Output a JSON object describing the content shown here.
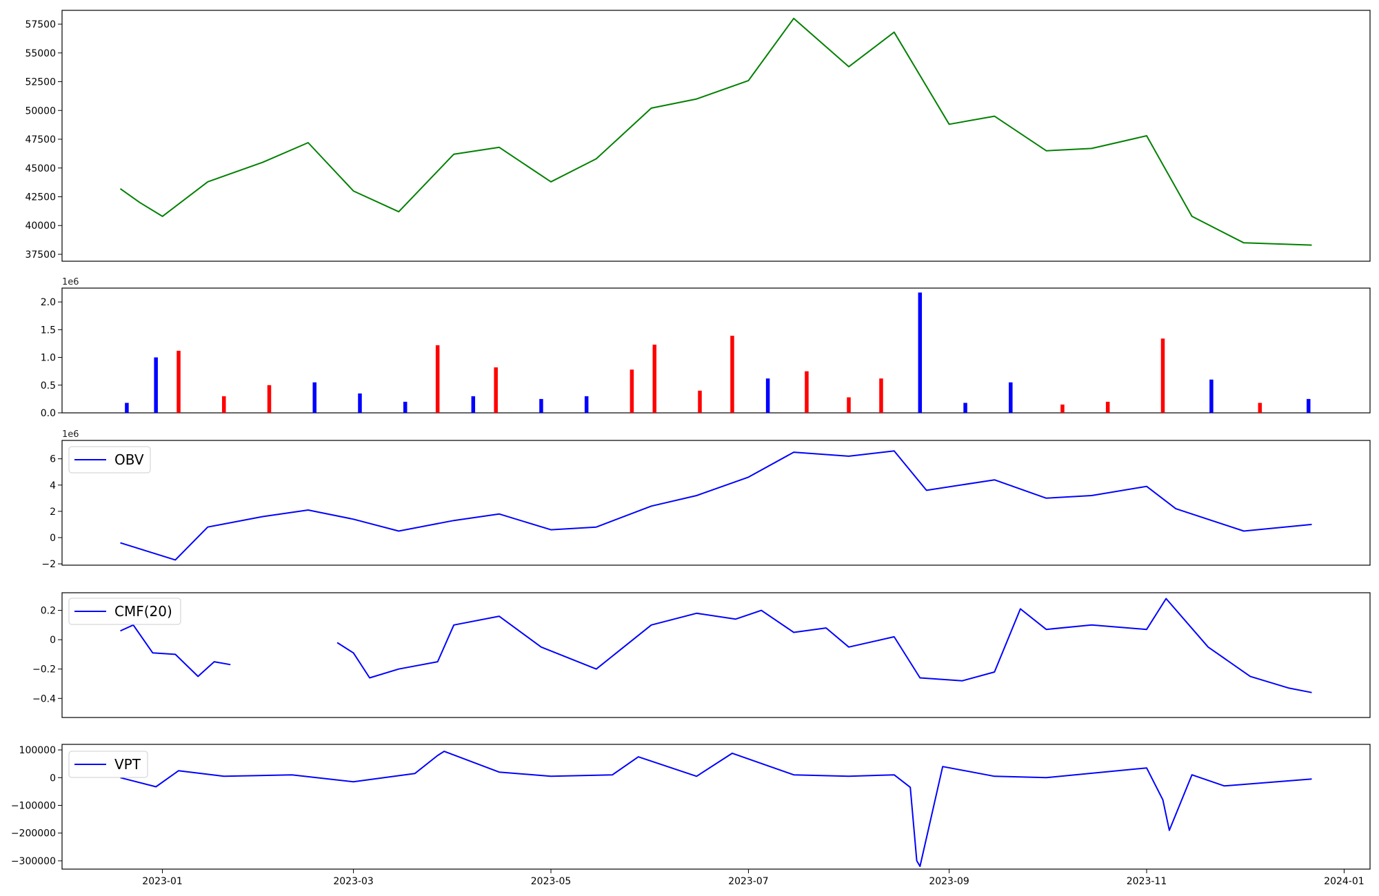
{
  "chart_data": [
    {
      "type": "line",
      "panel": "price",
      "title": "",
      "xlabel": "",
      "ylabel": "",
      "ylim": [
        36900,
        58700
      ],
      "yticks": [
        37500,
        40000,
        42500,
        45000,
        47500,
        50000,
        52500,
        55000,
        57500
      ],
      "color": "#008000",
      "x": [
        "2022-12-19",
        "2022-12-25",
        "2023-01-01",
        "2023-01-15",
        "2023-02-01",
        "2023-02-15",
        "2023-03-01",
        "2023-03-15",
        "2023-04-01",
        "2023-04-15",
        "2023-05-01",
        "2023-05-15",
        "2023-06-01",
        "2023-06-15",
        "2023-07-01",
        "2023-07-15",
        "2023-08-01",
        "2023-08-15",
        "2023-09-01",
        "2023-09-15",
        "2023-10-01",
        "2023-10-15",
        "2023-11-01",
        "2023-11-15",
        "2023-12-01",
        "2023-12-22"
      ],
      "y": [
        43200,
        42000,
        40800,
        43800,
        45500,
        47200,
        43000,
        41200,
        46200,
        46800,
        43800,
        45800,
        50200,
        51000,
        52600,
        58000,
        53800,
        56800,
        48800,
        49500,
        46500,
        46700,
        47800,
        40800,
        38500,
        38300
      ]
    },
    {
      "type": "bar",
      "panel": "volume",
      "offset_label": "1e6",
      "ylim": [
        0,
        2.25
      ],
      "yticks": [
        0.0,
        0.5,
        1.0,
        1.5,
        2.0
      ],
      "colors": [
        "#0000ff",
        "#ff0000",
        "#000000"
      ],
      "dates": [
        "2022-12-21",
        "2022-12-30",
        "2023-01-06",
        "2023-01-20",
        "2023-02-03",
        "2023-02-17",
        "2023-03-03",
        "2023-03-17",
        "2023-03-27",
        "2023-04-07",
        "2023-04-14",
        "2023-04-28",
        "2023-05-12",
        "2023-05-26",
        "2023-06-02",
        "2023-06-16",
        "2023-06-26",
        "2023-07-07",
        "2023-07-19",
        "2023-08-01",
        "2023-08-11",
        "2023-08-23",
        "2023-09-06",
        "2023-09-20",
        "2023-10-06",
        "2023-10-20",
        "2023-11-06",
        "2023-11-21",
        "2023-12-06",
        "2023-12-21"
      ],
      "values": [
        0.18,
        1.0,
        1.12,
        0.3,
        0.5,
        0.55,
        0.35,
        0.2,
        1.22,
        0.3,
        0.82,
        0.25,
        0.3,
        0.78,
        1.23,
        0.4,
        1.39,
        0.62,
        0.75,
        0.28,
        0.62,
        2.17,
        0.18,
        0.55,
        0.15,
        0.2,
        1.34,
        0.6,
        0.18,
        0.25
      ],
      "bar_colors": [
        "blue",
        "blue",
        "red",
        "red",
        "red",
        "blue",
        "blue",
        "blue",
        "red",
        "blue",
        "red",
        "blue",
        "blue",
        "red",
        "red",
        "red",
        "red",
        "blue",
        "red",
        "red",
        "red",
        "blue",
        "blue",
        "blue",
        "red",
        "red",
        "red",
        "blue",
        "red",
        "blue"
      ]
    },
    {
      "type": "line",
      "panel": "obv",
      "offset_label": "1e6",
      "legend": "OBV",
      "legend_position": "upper-left",
      "ylim": [
        -2.1,
        7.4
      ],
      "yticks": [
        -2,
        0,
        2,
        4,
        6
      ],
      "color": "#0000ff",
      "x": [
        "2022-12-19",
        "2023-01-05",
        "2023-01-15",
        "2023-02-01",
        "2023-02-15",
        "2023-03-01",
        "2023-03-15",
        "2023-04-01",
        "2023-04-15",
        "2023-05-01",
        "2023-05-15",
        "2023-06-01",
        "2023-06-15",
        "2023-07-01",
        "2023-07-15",
        "2023-08-01",
        "2023-08-15",
        "2023-08-25",
        "2023-09-15",
        "2023-10-01",
        "2023-10-15",
        "2023-11-01",
        "2023-11-10",
        "2023-12-01",
        "2023-12-22"
      ],
      "y": [
        -0.4,
        -1.7,
        0.8,
        1.6,
        2.1,
        1.4,
        0.5,
        1.3,
        1.8,
        0.6,
        0.8,
        2.4,
        3.2,
        4.6,
        6.5,
        6.2,
        6.6,
        3.6,
        4.4,
        3.0,
        3.2,
        3.9,
        2.2,
        0.5,
        1.0
      ]
    },
    {
      "type": "line",
      "panel": "cmf",
      "legend": "CMF(20)",
      "legend_position": "upper-left",
      "ylim": [
        -0.53,
        0.32
      ],
      "yticks": [
        -0.4,
        -0.2,
        0.0,
        0.2
      ],
      "color": "#0000ff",
      "segments": [
        {
          "x": [
            "2022-12-19",
            "2022-12-23",
            "2022-12-29",
            "2023-01-05",
            "2023-01-12",
            "2023-01-17",
            "2023-01-22"
          ],
          "y": [
            0.06,
            0.1,
            -0.09,
            -0.1,
            -0.25,
            -0.15,
            -0.17
          ]
        },
        {
          "x": [
            "2023-02-24",
            "2023-03-01",
            "2023-03-06",
            "2023-03-15",
            "2023-03-27",
            "2023-04-01",
            "2023-04-15",
            "2023-04-28",
            "2023-05-15",
            "2023-06-01",
            "2023-06-15",
            "2023-06-27",
            "2023-07-05",
            "2023-07-15",
            "2023-07-25",
            "2023-08-01",
            "2023-08-15",
            "2023-08-23",
            "2023-09-05",
            "2023-09-15",
            "2023-09-23",
            "2023-10-01",
            "2023-10-15",
            "2023-11-01",
            "2023-11-07",
            "2023-11-20",
            "2023-12-03",
            "2023-12-15",
            "2023-12-22"
          ],
          "y": [
            -0.02,
            -0.09,
            -0.26,
            -0.2,
            -0.15,
            0.1,
            0.16,
            -0.05,
            -0.2,
            0.1,
            0.18,
            0.14,
            0.2,
            0.05,
            0.08,
            -0.05,
            0.02,
            -0.26,
            -0.28,
            -0.22,
            0.21,
            0.07,
            0.1,
            0.07,
            0.28,
            -0.05,
            -0.25,
            -0.33,
            -0.36
          ]
        }
      ]
    },
    {
      "type": "line",
      "panel": "vpt",
      "legend": "VPT",
      "legend_position": "upper-left",
      "ylim": [
        -330000,
        120000
      ],
      "yticks": [
        -300000,
        -200000,
        -100000,
        0,
        100000
      ],
      "color": "#0000ff",
      "x": [
        "2022-12-19",
        "2022-12-30",
        "2023-01-06",
        "2023-01-20",
        "2023-02-10",
        "2023-03-01",
        "2023-03-20",
        "2023-03-27",
        "2023-03-29",
        "2023-04-15",
        "2023-05-01",
        "2023-05-20",
        "2023-05-28",
        "2023-06-15",
        "2023-06-26",
        "2023-07-15",
        "2023-08-01",
        "2023-08-15",
        "2023-08-20",
        "2023-08-22",
        "2023-08-23",
        "2023-08-30",
        "2023-09-15",
        "2023-10-01",
        "2023-11-01",
        "2023-11-06",
        "2023-11-08",
        "2023-11-15",
        "2023-11-25",
        "2023-12-22"
      ],
      "y": [
        0,
        -33000,
        25000,
        5000,
        10000,
        -15000,
        15000,
        80000,
        95000,
        20000,
        5000,
        10000,
        75000,
        5000,
        88000,
        10000,
        5000,
        10000,
        -35000,
        -300000,
        -320000,
        40000,
        5000,
        0,
        35000,
        -80000,
        -190000,
        10000,
        -30000,
        -5000
      ]
    }
  ],
  "x_axis": {
    "tick_labels": [
      "2023-01",
      "2023-03",
      "2023-05",
      "2023-07",
      "2023-09",
      "2023-11",
      "2024-01"
    ]
  }
}
